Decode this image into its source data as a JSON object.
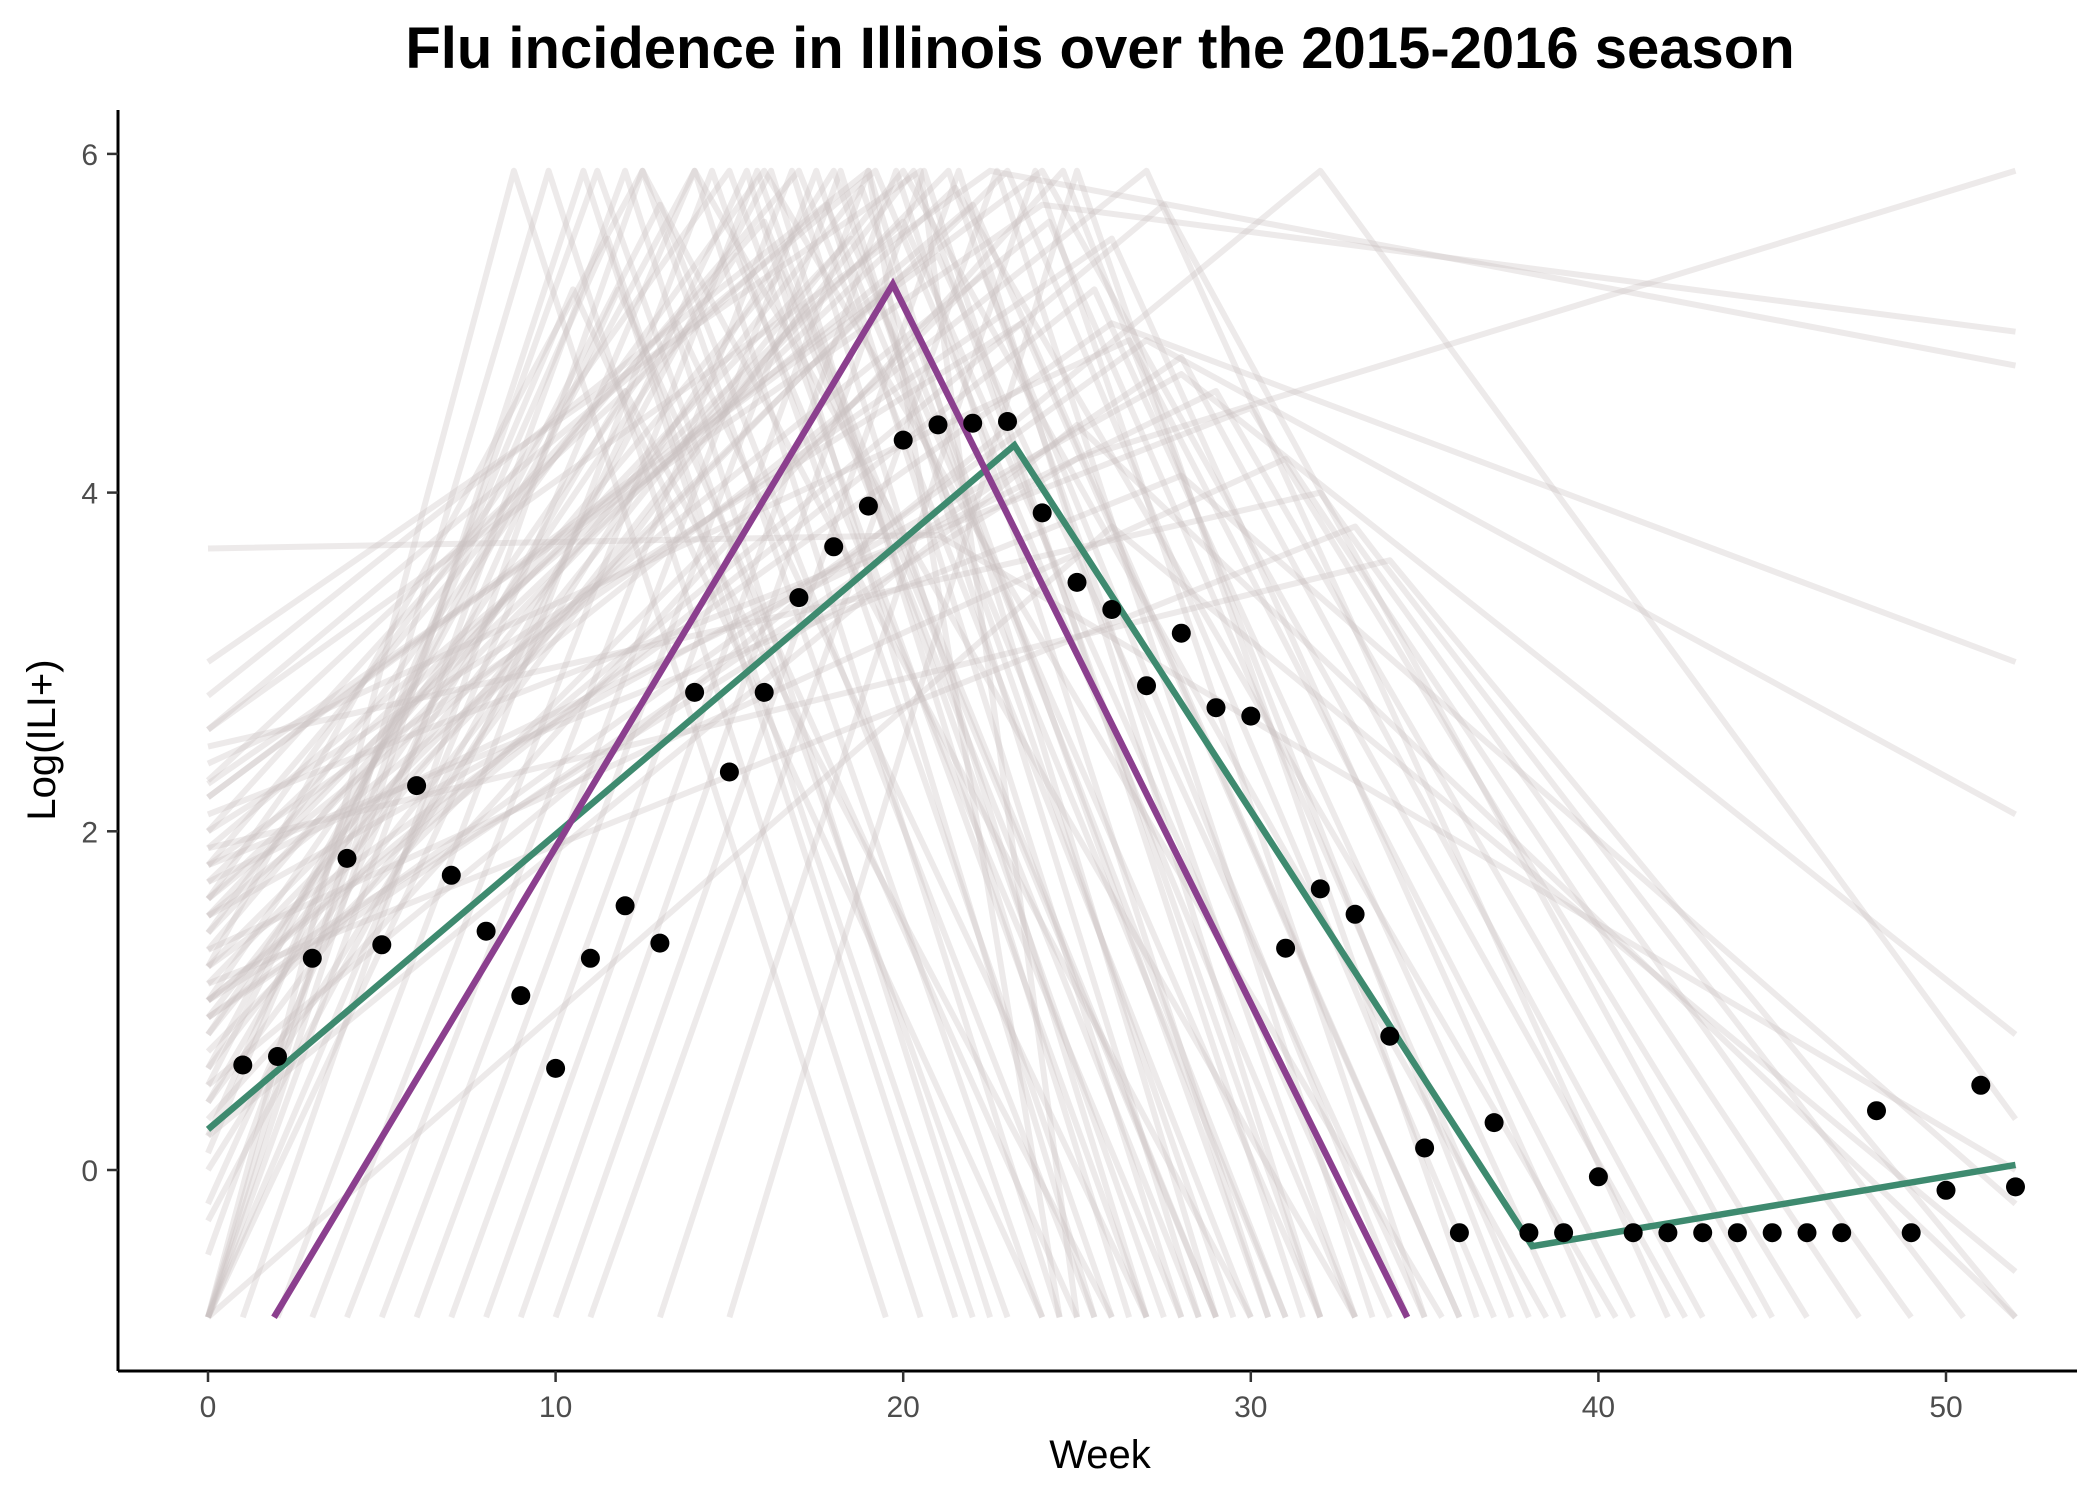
{
  "chart_data": {
    "type": "line",
    "title": "Flu incidence in Illinois over the 2015-2016 season",
    "xlabel": "Week",
    "ylabel": "Log(ILI+)",
    "xlim": [
      -2.6,
      54.4
    ],
    "ylim": [
      -1.2,
      6.25
    ],
    "x_ticks": [
      0,
      10,
      20,
      30,
      40,
      50
    ],
    "y_ticks": [
      0,
      2,
      4,
      6
    ],
    "grid": false,
    "legend": "none",
    "colors": {
      "points": "#000000",
      "fit": "#3e8a6f",
      "prior": "#8b3f8e",
      "samples": "#c9bfbf"
    },
    "observed": {
      "x": [
        1,
        2,
        3,
        4,
        5,
        6,
        7,
        8,
        9,
        10,
        11,
        12,
        13,
        14,
        15,
        16,
        17,
        18,
        19,
        20,
        21,
        22,
        23,
        24,
        25,
        26,
        27,
        28,
        29,
        30,
        31,
        32,
        33,
        34,
        35,
        36,
        37,
        38,
        39,
        40,
        41,
        42,
        43,
        44,
        45,
        46,
        47,
        48,
        49,
        50,
        51,
        52
      ],
      "y": [
        0.62,
        0.67,
        1.25,
        1.84,
        1.33,
        2.27,
        1.74,
        1.41,
        1.03,
        0.6,
        1.25,
        1.56,
        1.34,
        2.82,
        2.35,
        2.82,
        3.38,
        3.68,
        3.92,
        4.31,
        4.4,
        4.41,
        4.42,
        3.88,
        3.47,
        3.31,
        2.86,
        3.17,
        2.73,
        2.68,
        1.31,
        1.66,
        1.51,
        0.79,
        0.13,
        -0.37,
        0.28,
        -0.37,
        -0.37,
        -0.04,
        -0.37,
        -0.37,
        -0.37,
        -0.37,
        -0.37,
        -0.37,
        -0.37,
        0.35,
        -0.37,
        -0.12,
        0.5,
        -0.1
      ]
    },
    "series": [
      {
        "x": [
          0,
          23.2,
          38.1,
          52
        ],
        "y": [
          0.24,
          4.28,
          -0.45,
          0.03
        ]
      },
      {
        "x": [
          1.9,
          19.7,
          34.5
        ],
        "y": [
          -0.87,
          5.23,
          -0.87
        ]
      }
    ],
    "sample_curves": [
      {
        "x": [
          0,
          8.8,
          19.5
        ],
        "y": [
          -0.87,
          5.9,
          -0.87
        ]
      },
      {
        "x": [
          0,
          9.8,
          20.5
        ],
        "y": [
          -0.87,
          5.9,
          -0.87
        ]
      },
      {
        "x": [
          0,
          10.8,
          21.5
        ],
        "y": [
          -0.87,
          5.9,
          -0.87
        ]
      },
      {
        "x": [
          0,
          11.2,
          23.0
        ],
        "y": [
          -0.5,
          5.9,
          -0.87
        ]
      },
      {
        "x": [
          0,
          11.5,
          22.0
        ],
        "y": [
          0.2,
          5.5,
          -0.87
        ]
      },
      {
        "x": [
          0,
          11.8,
          25.0
        ],
        "y": [
          -0.2,
          5.2,
          -0.87
        ]
      },
      {
        "x": [
          0,
          12.0,
          22.5
        ],
        "y": [
          -0.87,
          5.9,
          -0.87
        ]
      },
      {
        "x": [
          1,
          12.5,
          24.0
        ],
        "y": [
          -0.87,
          5.9,
          -0.87
        ]
      },
      {
        "x": [
          0,
          13.0,
          25.5
        ],
        "y": [
          0.5,
          5.7,
          -0.87
        ]
      },
      {
        "x": [
          0,
          13.5,
          27.0
        ],
        "y": [
          1.0,
          5.0,
          -0.87
        ]
      },
      {
        "x": [
          0,
          14.0,
          24.5
        ],
        "y": [
          -0.87,
          5.9,
          -0.87
        ]
      },
      {
        "x": [
          2,
          14.5,
          26.0
        ],
        "y": [
          -0.87,
          5.9,
          -0.87
        ]
      },
      {
        "x": [
          0,
          15.0,
          27.0
        ],
        "y": [
          1.6,
          5.9,
          -0.87
        ]
      },
      {
        "x": [
          0,
          15.2,
          28.0
        ],
        "y": [
          0.8,
          5.4,
          -0.87
        ]
      },
      {
        "x": [
          0,
          15.5,
          25.5
        ],
        "y": [
          -0.87,
          5.9,
          -0.87
        ]
      },
      {
        "x": [
          3,
          15.8,
          27.5
        ],
        "y": [
          -0.87,
          5.9,
          -0.87
        ]
      },
      {
        "x": [
          0,
          16.0,
          29.0
        ],
        "y": [
          2.0,
          5.6,
          -0.87
        ]
      },
      {
        "x": [
          0,
          16.2,
          26.5
        ],
        "y": [
          -0.3,
          5.9,
          -0.87
        ]
      },
      {
        "x": [
          0,
          16.5,
          28.5
        ],
        "y": [
          1.3,
          5.3,
          -0.87
        ]
      },
      {
        "x": [
          4,
          16.8,
          27.0
        ],
        "y": [
          -0.87,
          5.9,
          -0.87
        ]
      },
      {
        "x": [
          0,
          17.0,
          30.0
        ],
        "y": [
          1.8,
          5.9,
          -0.87
        ]
      },
      {
        "x": [
          0,
          17.2,
          29.0
        ],
        "y": [
          0.4,
          5.1,
          -0.87
        ]
      },
      {
        "x": [
          5,
          17.5,
          28.0
        ],
        "y": [
          -0.87,
          5.9,
          -0.87
        ]
      },
      {
        "x": [
          0,
          17.8,
          31.0
        ],
        "y": [
          2.3,
          5.7,
          -0.87
        ]
      },
      {
        "x": [
          0,
          18.0,
          29.5
        ],
        "y": [
          0.0,
          5.9,
          -0.87
        ]
      },
      {
        "x": [
          6,
          18.2,
          28.5
        ],
        "y": [
          -0.87,
          5.9,
          -0.87
        ]
      },
      {
        "x": [
          0,
          18.5,
          32.0
        ],
        "y": [
          1.5,
          5.5,
          -0.87
        ]
      },
      {
        "x": [
          0,
          18.8,
          30.5
        ],
        "y": [
          0.9,
          5.8,
          -0.87
        ]
      },
      {
        "x": [
          7,
          19.0,
          29.0
        ],
        "y": [
          -0.87,
          5.9,
          -0.87
        ]
      },
      {
        "x": [
          0,
          19.2,
          33.0
        ],
        "y": [
          2.6,
          5.9,
          -0.87
        ]
      },
      {
        "x": [
          0,
          19.5,
          31.0
        ],
        "y": [
          1.1,
          5.2,
          -0.87
        ]
      },
      {
        "x": [
          8,
          19.8,
          30.5
        ],
        "y": [
          -0.87,
          5.9,
          -0.87
        ]
      },
      {
        "x": [
          0,
          20.0,
          34.0
        ],
        "y": [
          1.7,
          5.6,
          -0.87
        ]
      },
      {
        "x": [
          0,
          20.3,
          32.0
        ],
        "y": [
          0.6,
          5.9,
          -0.87
        ]
      },
      {
        "x": [
          9,
          20.6,
          31.5
        ],
        "y": [
          -0.87,
          5.9,
          -0.87
        ]
      },
      {
        "x": [
          0,
          21.0,
          35.0
        ],
        "y": [
          2.2,
          5.4,
          -0.87
        ]
      },
      {
        "x": [
          0,
          21.3,
          33.0
        ],
        "y": [
          1.4,
          5.9,
          -0.87
        ]
      },
      {
        "x": [
          10,
          21.6,
          32.0
        ],
        "y": [
          -0.87,
          5.9,
          -0.87
        ]
      },
      {
        "x": [
          0,
          22.0,
          36.0
        ],
        "y": [
          1.9,
          5.7,
          -0.87
        ]
      },
      {
        "x": [
          0,
          22.3,
          34.5
        ],
        "y": [
          0.7,
          5.3,
          -0.87
        ]
      },
      {
        "x": [
          11,
          22.7,
          33.5
        ],
        "y": [
          -0.87,
          5.9,
          -0.87
        ]
      },
      {
        "x": [
          0,
          23.0,
          37.0
        ],
        "y": [
          1.2,
          5.9,
          -0.87
        ]
      },
      {
        "x": [
          0,
          23.4,
          36.0
        ],
        "y": [
          2.0,
          5.0,
          -0.87
        ]
      },
      {
        "x": [
          13,
          23.8,
          35.0
        ],
        "y": [
          -0.87,
          5.9,
          -0.87
        ]
      },
      {
        "x": [
          0,
          24.2,
          38.0
        ],
        "y": [
          1.6,
          5.6,
          -0.87
        ]
      },
      {
        "x": [
          0,
          24.6,
          37.5
        ],
        "y": [
          0.3,
          5.9,
          -0.87
        ]
      },
      {
        "x": [
          15,
          25.0,
          36.5
        ],
        "y": [
          -0.87,
          5.9,
          -0.87
        ]
      },
      {
        "x": [
          0,
          25.5,
          39.0
        ],
        "y": [
          1.0,
          5.2,
          -0.87
        ]
      },
      {
        "x": [
          0,
          26.0,
          40.0
        ],
        "y": [
          1.8,
          5.5,
          -0.87
        ]
      },
      {
        "x": [
          0,
          26.5,
          41.0
        ],
        "y": [
          2.4,
          4.9,
          -0.87
        ]
      },
      {
        "x": [
          0,
          27.0,
          42.0
        ],
        "y": [
          1.5,
          5.9,
          -0.87
        ]
      },
      {
        "x": [
          0,
          28.0,
          43.0
        ],
        "y": [
          0.9,
          4.8,
          -0.87
        ]
      },
      {
        "x": [
          0,
          29.0,
          44.5
        ],
        "y": [
          1.7,
          4.6,
          -0.87
        ]
      },
      {
        "x": [
          0,
          30.0,
          46.0
        ],
        "y": [
          2.1,
          4.5,
          -0.87
        ]
      },
      {
        "x": [
          0,
          31.0,
          47.5
        ],
        "y": [
          1.3,
          4.2,
          -0.87
        ]
      },
      {
        "x": [
          0,
          32.0,
          49.0
        ],
        "y": [
          2.5,
          4.0,
          -0.87
        ]
      },
      {
        "x": [
          0,
          33.0,
          50.5
        ],
        "y": [
          1.1,
          3.8,
          -0.87
        ]
      },
      {
        "x": [
          0,
          34.0,
          52.0
        ],
        "y": [
          1.9,
          3.6,
          -0.87
        ]
      },
      {
        "x": [
          0,
          12.5,
          30.0
        ],
        "y": [
          1.2,
          5.9,
          -0.87
        ]
      },
      {
        "x": [
          0,
          14.0,
          33.0
        ],
        "y": [
          0.6,
          5.9,
          -0.87
        ]
      },
      {
        "x": [
          0,
          16.0,
          35.5
        ],
        "y": [
          1.4,
          5.9,
          -0.87
        ]
      },
      {
        "x": [
          0,
          20.0,
          38.5
        ],
        "y": [
          0.8,
          5.9,
          -0.87
        ]
      },
      {
        "x": [
          0,
          21.5,
          40.5
        ],
        "y": [
          1.6,
          5.8,
          -0.87
        ]
      },
      {
        "x": [
          0,
          24.0,
          42.5
        ],
        "y": [
          2.2,
          5.9,
          -0.87
        ]
      },
      {
        "x": [
          0,
          27.5,
          45.0
        ],
        "y": [
          1.0,
          5.7,
          -0.87
        ]
      },
      {
        "x": [
          0,
          10.5,
          24.0
        ],
        "y": [
          0.1,
          5.2,
          -0.87
        ]
      },
      {
        "x": [
          0,
          12.0,
          26.0
        ],
        "y": [
          0.4,
          4.6,
          -0.87
        ]
      },
      {
        "x": [
          0,
          19.0,
          24.5
        ],
        "y": [
          2.8,
          5.9,
          -0.87
        ]
      },
      {
        "x": [
          0,
          20.5,
          25.0
        ],
        "y": [
          3.0,
          5.9,
          -0.87
        ]
      },
      {
        "x": [
          0,
          21.0,
          52.0
        ],
        "y": [
          3.67,
          3.75,
          0.0
        ]
      },
      {
        "x": [
          0,
          22.5,
          52.0
        ],
        "y": [
          2.6,
          5.9,
          4.75
        ]
      },
      {
        "x": [
          0,
          24.0,
          52.0
        ],
        "y": [
          2.28,
          5.7,
          4.95
        ]
      },
      {
        "x": [
          0,
          25.0,
          52.0
        ],
        "y": [
          1.0,
          4.2,
          5.9
        ]
      },
      {
        "x": [
          0,
          26.0,
          52.0
        ],
        "y": [
          1.2,
          5.0,
          3.0
        ]
      },
      {
        "x": [
          0,
          27.0,
          52.0
        ],
        "y": [
          0.9,
          4.9,
          2.1
        ]
      },
      {
        "x": [
          0,
          28.0,
          52.0
        ],
        "y": [
          1.5,
          4.7,
          0.8
        ]
      },
      {
        "x": [
          0,
          32.0,
          52.0
        ],
        "y": [
          0.5,
          5.9,
          0.3
        ]
      },
      {
        "x": [
          0,
          28.0,
          52.0
        ],
        "y": [
          1.8,
          4.1,
          -0.2
        ]
      },
      {
        "x": [
          0,
          26.0,
          52.0
        ],
        "y": [
          -0.87,
          3.8,
          -0.6
        ]
      },
      {
        "x": [
          0,
          25.0,
          52.0
        ],
        "y": [
          0.2,
          4.4,
          -0.87
        ]
      }
    ]
  }
}
